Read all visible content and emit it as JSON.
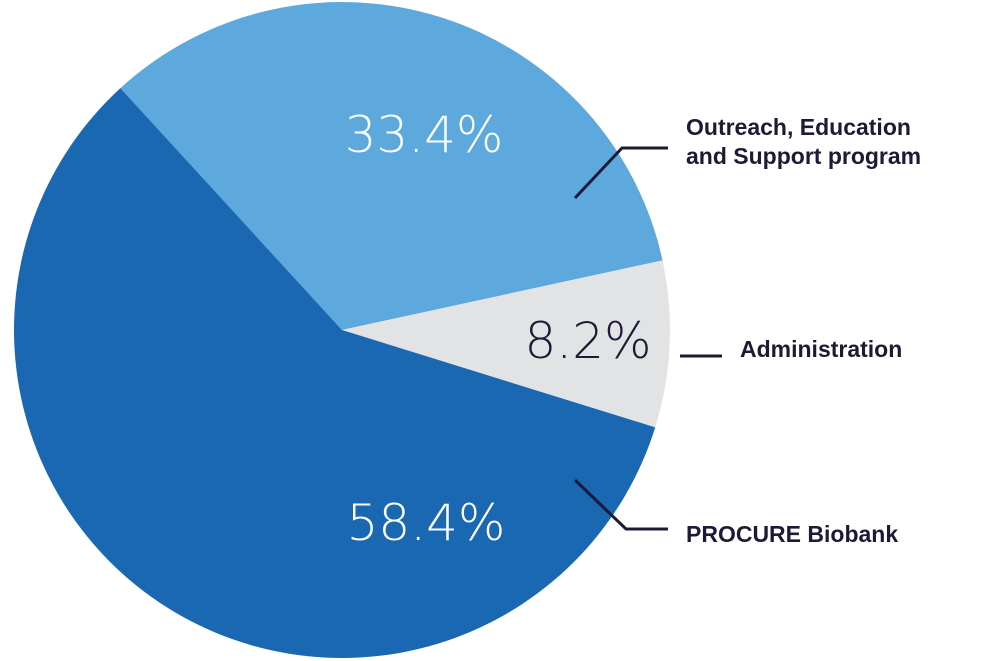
{
  "chart_data": {
    "type": "pie",
    "slices": [
      {
        "label": "Outreach, Education and Support program",
        "label_lines": [
          "Outreach, Education",
          "and Support program"
        ],
        "value": 33.4,
        "value_label": "33.4%",
        "color": "#5da9dd",
        "text_color": "#ffffff"
      },
      {
        "label": "Administration",
        "label_lines": [
          "Administration"
        ],
        "value": 8.2,
        "value_label": "8.2%",
        "color": "#e2e3e5",
        "text_color": "#1d1a36"
      },
      {
        "label": "PROCURE Biobank",
        "label_lines": [
          "PROCURE Biobank"
        ],
        "value": 58.4,
        "value_label": "58.4%",
        "color": "#1a68b2",
        "text_color": "#ffffff"
      }
    ],
    "legend": "callouts-right",
    "callout_line_color": "#1d1a36"
  }
}
